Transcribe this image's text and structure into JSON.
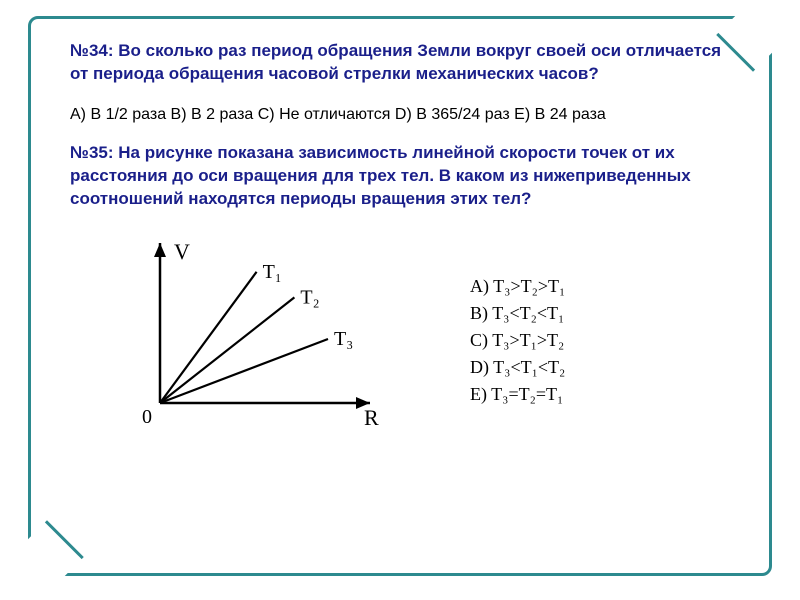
{
  "frame": {
    "border_color": "#2d8a8f",
    "border_width": 3,
    "background": "#ffffff"
  },
  "text_colors": {
    "title": "#1a1f8a",
    "body": "#000000"
  },
  "q34": {
    "title": "№34: Во сколько раз период обращения Земли вокруг своей оси отличается от периода обращения часовой стрелки механических часов?",
    "answers": "A) В 1/2 раза   B) В 2 раза  C) Не отличаются D) В 365/24 раз  E) В 24 раза"
  },
  "q35": {
    "title": "№35: На рисунке показана зависимость линейной скорости точек от их расстояния до оси вращения для трех тел. В каком из нижеприведенных соотношений находятся периоды вращения этих тел?",
    "chart": {
      "type": "line",
      "origin_label": "0",
      "x_label": "R",
      "y_label": "V",
      "axis_color": "#000000",
      "line_color": "#000000",
      "line_width": 2.2,
      "xlim": [
        0,
        10
      ],
      "ylim": [
        0,
        10
      ],
      "series": [
        {
          "label": "T₁",
          "x0": 0,
          "y0": 0,
          "x1": 4.6,
          "y1": 8.2
        },
        {
          "label": "T₂",
          "x0": 0,
          "y0": 0,
          "x1": 6.4,
          "y1": 6.6
        },
        {
          "label": "T₃",
          "x0": 0,
          "y0": 0,
          "x1": 8.0,
          "y1": 4.0
        }
      ],
      "label_fontsize": 20
    },
    "answers": {
      "A": "T₃>T₂>T₁",
      "B": "T₃<T₂<T₁",
      "C": "T₃>T₁>T₂",
      "D": "T₃<T₁<T₂",
      "E": "T₃=T₂=T₁"
    }
  }
}
